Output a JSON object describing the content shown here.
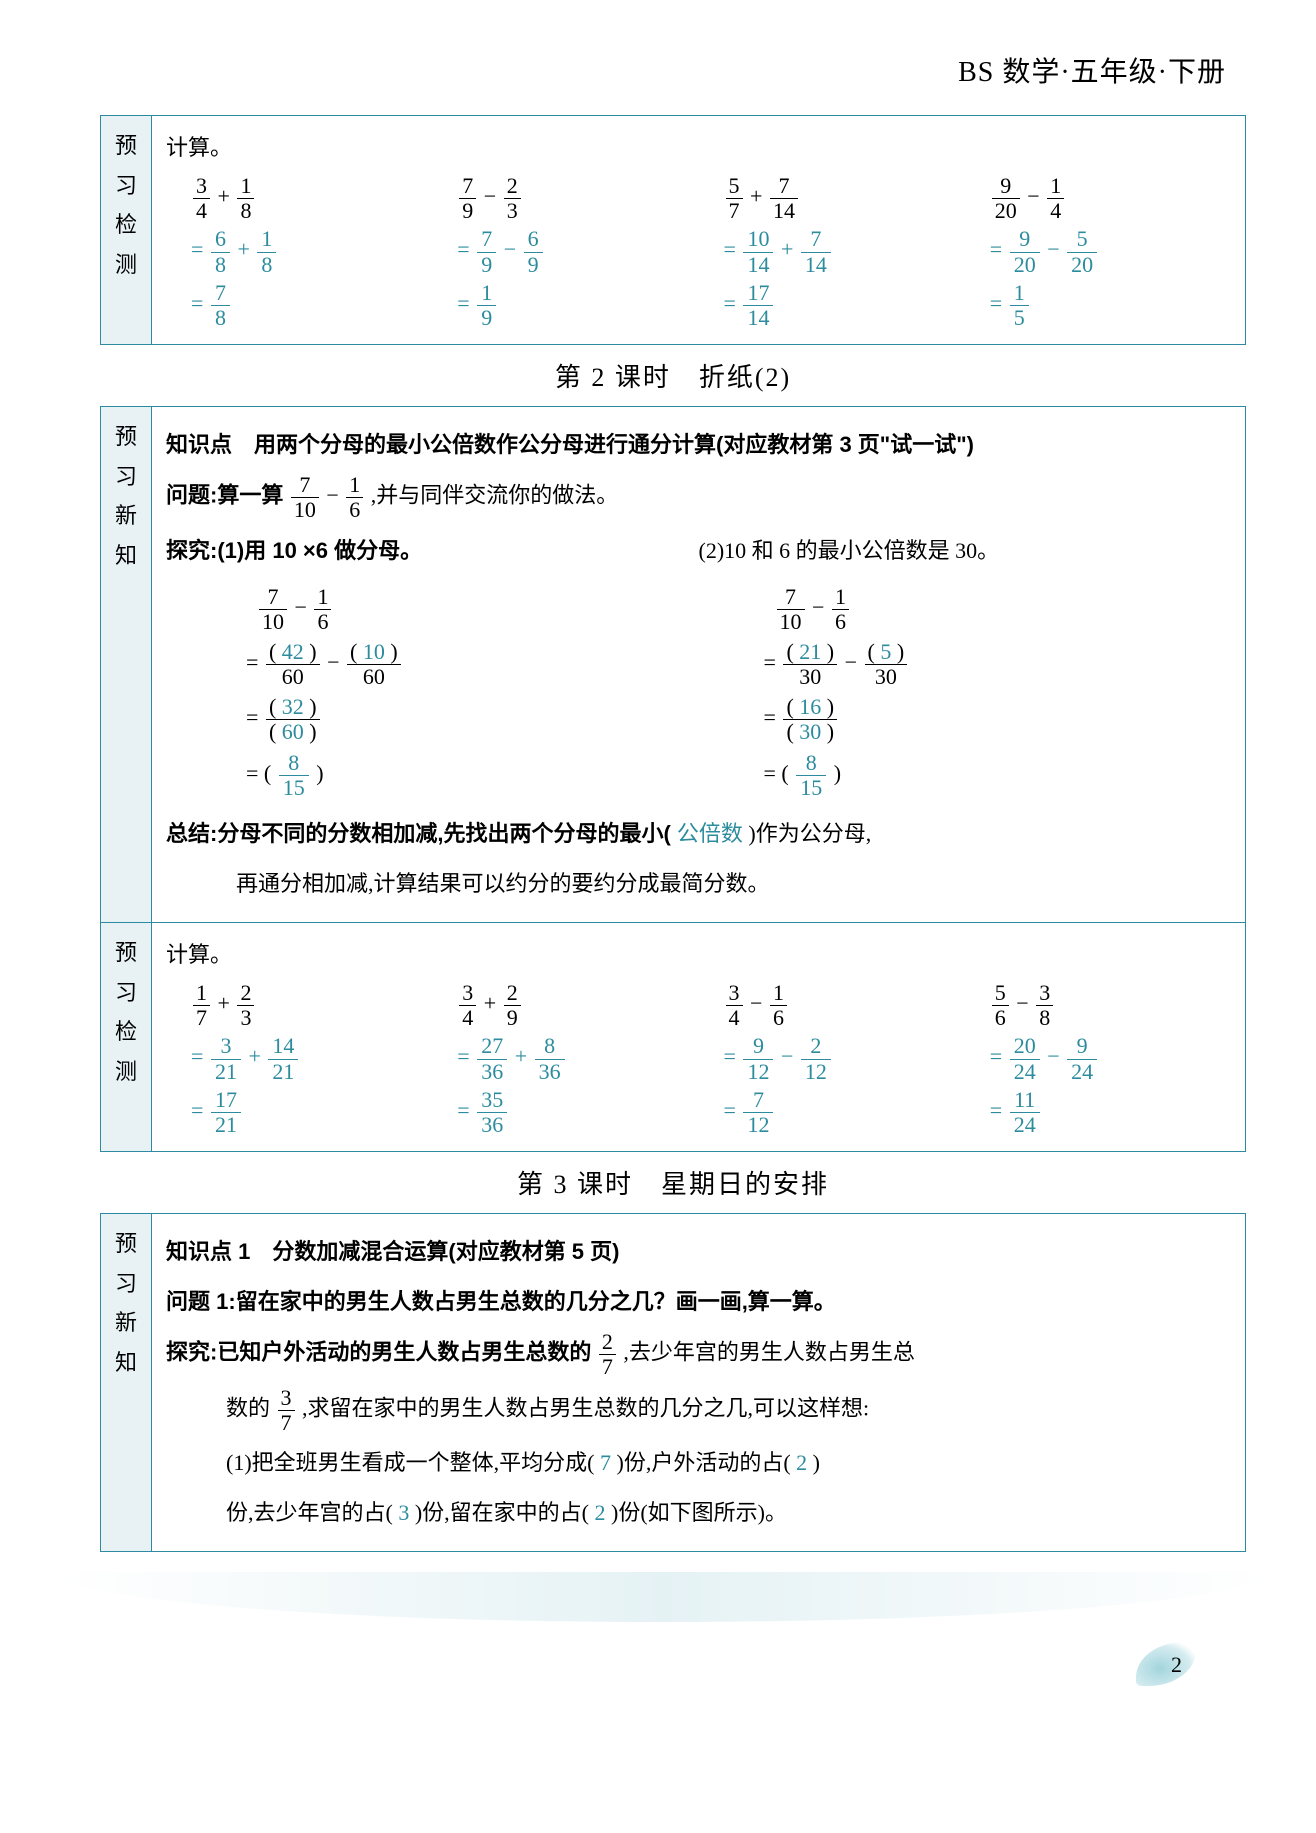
{
  "header": "BS 数学·五年级·下册",
  "page_number": "2",
  "side_labels": {
    "yuxi_jiance": [
      "预",
      "习",
      "检",
      "测"
    ],
    "yuxi_xinzhi": [
      "预",
      "习",
      "新",
      "知"
    ]
  },
  "box1": {
    "title": "计算。",
    "problems": [
      {
        "expr": {
          "a_n": "3",
          "a_d": "4",
          "op": "+",
          "b_n": "1",
          "b_d": "8"
        },
        "step1": {
          "a_n": "6",
          "a_d": "8",
          "op": "+",
          "b_n": "1",
          "b_d": "8"
        },
        "step2": {
          "n": "7",
          "d": "8"
        }
      },
      {
        "expr": {
          "a_n": "7",
          "a_d": "9",
          "op": "−",
          "b_n": "2",
          "b_d": "3"
        },
        "step1": {
          "a_n": "7",
          "a_d": "9",
          "op": "−",
          "b_n": "6",
          "b_d": "9"
        },
        "step2": {
          "n": "1",
          "d": "9"
        }
      },
      {
        "expr": {
          "a_n": "5",
          "a_d": "7",
          "op": "+",
          "b_n": "7",
          "b_d": "14"
        },
        "step1": {
          "a_n": "10",
          "a_d": "14",
          "op": "+",
          "b_n": "7",
          "b_d": "14"
        },
        "step2": {
          "n": "17",
          "d": "14"
        }
      },
      {
        "expr": {
          "a_n": "9",
          "a_d": "20",
          "op": "−",
          "b_n": "1",
          "b_d": "4"
        },
        "step1": {
          "a_n": "9",
          "a_d": "20",
          "op": "−",
          "b_n": "5",
          "b_d": "20"
        },
        "step2": {
          "n": "1",
          "d": "5"
        }
      }
    ]
  },
  "title2": "第 2 课时　折纸(2)",
  "box2": {
    "zhishidian_pre": "知识点　用两个分母的最小公倍数作公分母进行通分计算(对应教材第 3 页\"试一试\")",
    "wenti_pre": "问题:算一算",
    "wenti_frac": {
      "n": "7",
      "d": "10",
      "op": "−",
      "n2": "1",
      "d2": "6"
    },
    "wenti_post": ",并与同伴交流你的做法。",
    "tanjiu_left": "探究:(1)用 10 ×6 做分母。",
    "tanjiu_right": "(2)10 和 6 的最小公倍数是 30。",
    "left_steps": {
      "s0": {
        "a_n": "7",
        "a_d": "10",
        "op": "−",
        "b_n": "1",
        "b_d": "6"
      },
      "s1": {
        "a": "42",
        "b": "10",
        "d": "60"
      },
      "s2": {
        "n": "32",
        "d": "60"
      },
      "s3": {
        "n": "8",
        "d": "15"
      }
    },
    "right_steps": {
      "s0": {
        "a_n": "7",
        "a_d": "10",
        "op": "−",
        "b_n": "1",
        "b_d": "6"
      },
      "s1": {
        "a": "21",
        "b": "5",
        "d": "30"
      },
      "s2": {
        "n": "16",
        "d": "30"
      },
      "s3": {
        "n": "8",
        "d": "15"
      }
    },
    "zongjie_pre": "总结:分母不同的分数相加减,先找出两个分母的最小( ",
    "zongjie_ans": "公倍数",
    "zongjie_mid": " )作为公分母,",
    "zongjie_line2": "再通分相加减,计算结果可以约分的要约分成最简分数。"
  },
  "box3": {
    "title": "计算。",
    "problems": [
      {
        "expr": {
          "a_n": "1",
          "a_d": "7",
          "op": "+",
          "b_n": "2",
          "b_d": "3"
        },
        "step1": {
          "a_n": "3",
          "a_d": "21",
          "op": "+",
          "b_n": "14",
          "b_d": "21"
        },
        "step2": {
          "n": "17",
          "d": "21"
        }
      },
      {
        "expr": {
          "a_n": "3",
          "a_d": "4",
          "op": "+",
          "b_n": "2",
          "b_d": "9"
        },
        "step1": {
          "a_n": "27",
          "a_d": "36",
          "op": "+",
          "b_n": "8",
          "b_d": "36"
        },
        "step2": {
          "n": "35",
          "d": "36"
        }
      },
      {
        "expr": {
          "a_n": "3",
          "a_d": "4",
          "op": "−",
          "b_n": "1",
          "b_d": "6"
        },
        "step1": {
          "a_n": "9",
          "a_d": "12",
          "op": "−",
          "b_n": "2",
          "b_d": "12"
        },
        "step2": {
          "n": "7",
          "d": "12"
        }
      },
      {
        "expr": {
          "a_n": "5",
          "a_d": "6",
          "op": "−",
          "b_n": "3",
          "b_d": "8"
        },
        "step1": {
          "a_n": "20",
          "a_d": "24",
          "op": "−",
          "b_n": "9",
          "b_d": "24"
        },
        "step2": {
          "n": "11",
          "d": "24"
        }
      }
    ]
  },
  "title3": "第 3 课时　星期日的安排",
  "box4": {
    "zhishidian": "知识点 1　分数加减混合运算(对应教材第 5 页)",
    "wenti": "问题 1:留在家中的男生人数占男生总数的几分之几？画一画,算一算。",
    "tanjiu_pre": "探究:已知户外活动的男生人数占男生总数的",
    "tanjiu_f1": {
      "n": "2",
      "d": "7"
    },
    "tanjiu_mid": ",去少年宫的男生人数占男生总",
    "tanjiu_line2_pre": "数的",
    "tanjiu_f2": {
      "n": "3",
      "d": "7"
    },
    "tanjiu_line2_post": ",求留在家中的男生人数占男生总数的几分之几,可以这样想:",
    "line3_pre": "(1)把全班男生看成一个整体,平均分成( ",
    "ans1": "7",
    "line3_mid": " )份,户外活动的占( ",
    "ans2": "2",
    "line3_post": " )",
    "line4_pre": "份,去少年宫的占( ",
    "ans3": "3",
    "line4_mid": " )份,留在家中的占( ",
    "ans4": "2",
    "line4_post": " )份(如下图所示)。"
  },
  "colors": {
    "teal": "#2c8c9e",
    "border": "#2e8aa0",
    "side_bg": "#e8f2f5"
  }
}
